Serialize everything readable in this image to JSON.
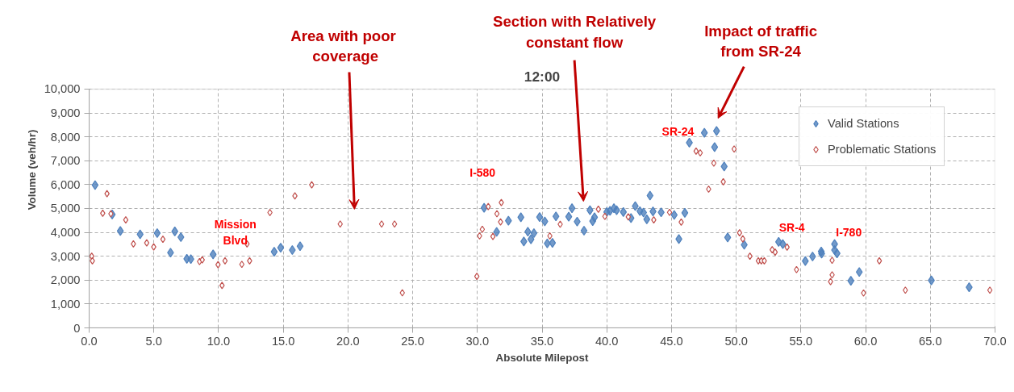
{
  "chart_data": {
    "type": "scatter",
    "title": "12:00",
    "xlabel": "Absolute Milepost",
    "ylabel": "Volume (veh/hr)",
    "xlim": [
      0,
      70
    ],
    "ylim": [
      0,
      10000
    ],
    "xticks": [
      {
        "value": 0,
        "label": "0.0"
      },
      {
        "value": 5,
        "label": "5.0"
      },
      {
        "value": 10,
        "label": "10.0"
      },
      {
        "value": 15,
        "label": "15.0"
      },
      {
        "value": 20,
        "label": "20.0"
      },
      {
        "value": 25,
        "label": "25.0"
      },
      {
        "value": 30,
        "label": "30.0"
      },
      {
        "value": 35,
        "label": "35.0"
      },
      {
        "value": 40,
        "label": "40.0"
      },
      {
        "value": 45,
        "label": "45.0"
      },
      {
        "value": 50,
        "label": "50.0"
      },
      {
        "value": 55,
        "label": "55.0"
      },
      {
        "value": 60,
        "label": "60.0"
      },
      {
        "value": 65,
        "label": "65.0"
      },
      {
        "value": 70,
        "label": "70.0"
      }
    ],
    "yticks": [
      0,
      {
        "value": 1000,
        "label": "1,000"
      },
      {
        "value": 2000,
        "label": "2,000"
      },
      {
        "value": 3000,
        "label": "3,000"
      },
      {
        "value": 4000,
        "label": "4,000"
      },
      {
        "value": 5000,
        "label": "5,000"
      },
      {
        "value": 6000,
        "label": "6,000"
      },
      {
        "value": 7000,
        "label": "7,000"
      },
      {
        "value": 8000,
        "label": "8,000"
      },
      {
        "value": 9000,
        "label": "9,000"
      },
      {
        "value": 10000,
        "label": "10,000"
      }
    ],
    "grid": true,
    "legend": "top right",
    "marker": "diamond",
    "series": [
      {
        "name": "Valid Stations",
        "color": "#4f81bd",
        "x": [
          0.46,
          1.78,
          2.41,
          3.94,
          5.26,
          6.29,
          6.62,
          7.09,
          7.55,
          7.86,
          9.58,
          14.3,
          14.8,
          15.7,
          16.3,
          30.52,
          31.49,
          32.4,
          33.36,
          33.59,
          33.9,
          34.14,
          34.37,
          34.81,
          35.21,
          35.4,
          35.8,
          36.07,
          37.06,
          37.31,
          37.71,
          38.24,
          38.7,
          38.91,
          39.05,
          40.0,
          40.25,
          40.55,
          40.76,
          41.28,
          41.87,
          42.2,
          42.56,
          42.84,
          43.09,
          43.34,
          43.57,
          44.2,
          45.21,
          45.57,
          46.03,
          46.38,
          47.54,
          48.48,
          48.33,
          49.07,
          49.34,
          50.62,
          53.28,
          53.6,
          55.34,
          55.9,
          56.57,
          56.6,
          57.6,
          57.6,
          57.79,
          58.86,
          59.51,
          65.08,
          68.0
        ],
        "values": [
          5980,
          4750,
          4060,
          3920,
          3970,
          3150,
          4040,
          3800,
          2890,
          2880,
          3080,
          3190,
          3360,
          3260,
          3420,
          5030,
          4020,
          4490,
          4630,
          3620,
          4030,
          3710,
          3970,
          4640,
          4460,
          3540,
          3560,
          4670,
          4660,
          5010,
          4450,
          4070,
          4930,
          4470,
          4630,
          4850,
          4900,
          5010,
          4930,
          4850,
          4600,
          5100,
          4890,
          4830,
          4550,
          5540,
          4880,
          4840,
          4730,
          3720,
          4820,
          7760,
          8170,
          8250,
          7570,
          6760,
          3790,
          3480,
          3600,
          3510,
          2800,
          2990,
          3200,
          3110,
          3510,
          3260,
          3120,
          1970,
          2340,
          1990,
          1700
        ]
      },
      {
        "name": "Problematic Stations",
        "color": "#c0504d",
        "x": [
          0.2,
          0.25,
          1.38,
          1.05,
          1.68,
          2.83,
          3.42,
          4.45,
          4.99,
          5.7,
          8.53,
          8.74,
          9.96,
          10.5,
          10.27,
          11.8,
          12.2,
          12.4,
          13.97,
          15.9,
          17.2,
          19.4,
          22.6,
          23.6,
          24.2,
          29.96,
          30.17,
          30.38,
          30.84,
          31.2,
          31.51,
          31.79,
          31.85,
          35.6,
          36.4,
          39.35,
          39.85,
          41.66,
          43.63,
          44.85,
          45.75,
          46.9,
          47.22,
          48.27,
          47.87,
          49.0,
          49.84,
          50.26,
          50.51,
          51.06,
          51.71,
          51.94,
          52.17,
          52.78,
          53.01,
          53.93,
          54.66,
          57.41,
          57.41,
          57.29,
          59.84,
          61.06,
          63.07,
          69.6
        ],
        "values": [
          3000,
          2810,
          5620,
          4800,
          4780,
          4520,
          3520,
          3560,
          3390,
          3710,
          2780,
          2850,
          2650,
          2810,
          1780,
          2660,
          3520,
          2810,
          4830,
          5530,
          5990,
          4350,
          4350,
          4350,
          1470,
          2160,
          3850,
          4130,
          5080,
          3830,
          4780,
          4440,
          5250,
          3850,
          4340,
          4970,
          4670,
          4650,
          4520,
          4840,
          4430,
          7400,
          7330,
          6900,
          5810,
          6120,
          7490,
          3980,
          3730,
          3000,
          2810,
          2810,
          2810,
          3270,
          3170,
          3380,
          2440,
          2830,
          2220,
          1940,
          1460,
          2810,
          1580,
          1580
        ]
      }
    ],
    "annotations": [
      "Area  with poor\ncoverage",
      "Section with Relatively\nconstant flow",
      "Impact of traffic\nfrom SR-24",
      "Mission\nBlvd",
      "I-580",
      "SR-24",
      "SR-4",
      "I-780"
    ]
  }
}
